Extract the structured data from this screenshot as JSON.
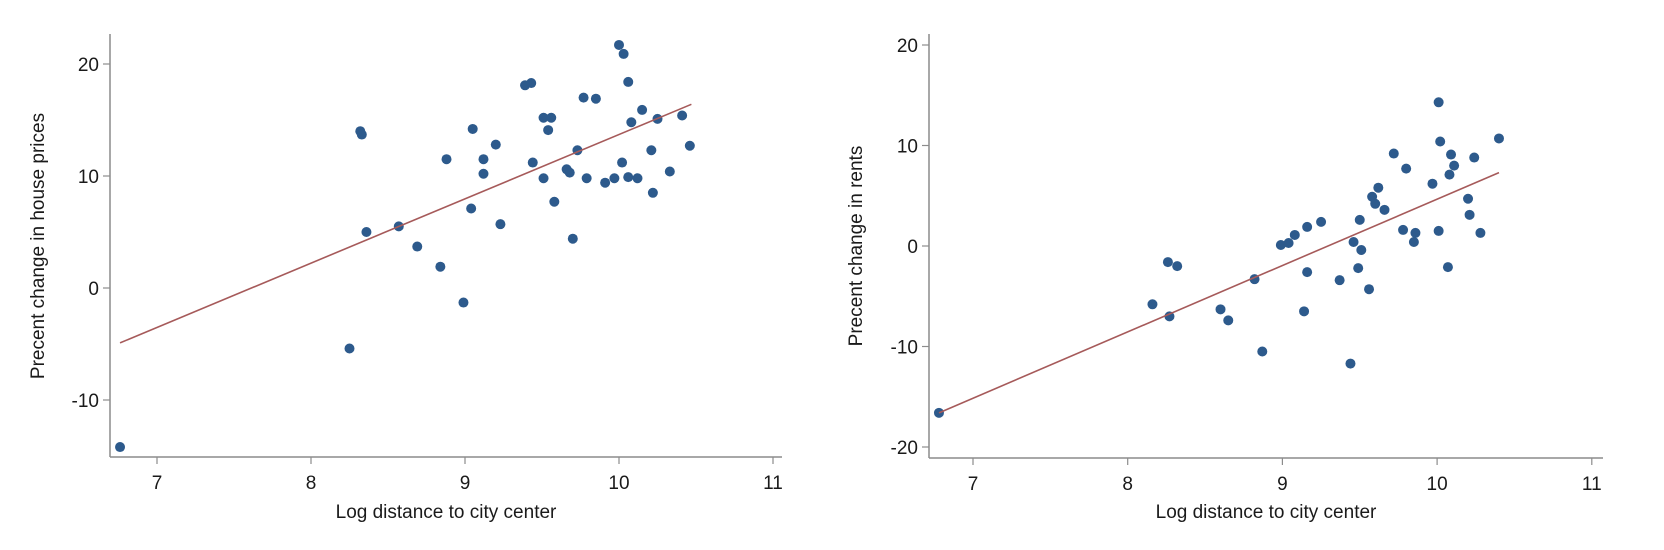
{
  "colors": {
    "points": "#2d5a8c",
    "fit_line": "#a65a5a",
    "axis": "#8c8c8c",
    "background": "#ffffff"
  },
  "chart_data": [
    {
      "type": "scatter",
      "title": "",
      "xlabel": "Log distance to city center",
      "ylabel": "Precent change in house prices",
      "xlim": [
        6.7,
        11.05
      ],
      "ylim": [
        -15.5,
        23
      ],
      "xticks": [
        7,
        8,
        9,
        10,
        11
      ],
      "yticks": [
        -10,
        0,
        10,
        20
      ],
      "grid": false,
      "legend": null,
      "fit_line": {
        "x": [
          6.76,
          10.47
        ],
        "y": [
          -4.9,
          16.4
        ]
      },
      "points": [
        {
          "x": 6.76,
          "y": -14.2
        },
        {
          "x": 8.25,
          "y": -5.4
        },
        {
          "x": 8.32,
          "y": 14.0
        },
        {
          "x": 8.33,
          "y": 13.7
        },
        {
          "x": 8.36,
          "y": 5.0
        },
        {
          "x": 8.57,
          "y": 5.5
        },
        {
          "x": 8.69,
          "y": 3.7
        },
        {
          "x": 8.84,
          "y": 1.9
        },
        {
          "x": 8.88,
          "y": 11.5
        },
        {
          "x": 8.99,
          "y": -1.3
        },
        {
          "x": 9.04,
          "y": 7.1
        },
        {
          "x": 9.05,
          "y": 14.2
        },
        {
          "x": 9.12,
          "y": 11.5
        },
        {
          "x": 9.12,
          "y": 10.2
        },
        {
          "x": 9.2,
          "y": 12.8
        },
        {
          "x": 9.23,
          "y": 5.7
        },
        {
          "x": 9.39,
          "y": 18.1
        },
        {
          "x": 9.43,
          "y": 18.3
        },
        {
          "x": 9.44,
          "y": 11.2
        },
        {
          "x": 9.51,
          "y": 9.8
        },
        {
          "x": 9.51,
          "y": 15.2
        },
        {
          "x": 9.54,
          "y": 14.1
        },
        {
          "x": 9.56,
          "y": 15.2
        },
        {
          "x": 9.58,
          "y": 7.7
        },
        {
          "x": 9.66,
          "y": 10.6
        },
        {
          "x": 9.68,
          "y": 10.3
        },
        {
          "x": 9.7,
          "y": 4.4
        },
        {
          "x": 9.73,
          "y": 12.3
        },
        {
          "x": 9.77,
          "y": 17.0
        },
        {
          "x": 9.79,
          "y": 9.8
        },
        {
          "x": 9.85,
          "y": 16.9
        },
        {
          "x": 9.91,
          "y": 9.4
        },
        {
          "x": 9.97,
          "y": 9.8
        },
        {
          "x": 10.0,
          "y": 21.7
        },
        {
          "x": 10.03,
          "y": 20.9
        },
        {
          "x": 10.02,
          "y": 11.2
        },
        {
          "x": 10.06,
          "y": 18.4
        },
        {
          "x": 10.06,
          "y": 9.9
        },
        {
          "x": 10.08,
          "y": 14.8
        },
        {
          "x": 10.12,
          "y": 9.8
        },
        {
          "x": 10.15,
          "y": 15.9
        },
        {
          "x": 10.21,
          "y": 12.3
        },
        {
          "x": 10.22,
          "y": 8.5
        },
        {
          "x": 10.25,
          "y": 15.1
        },
        {
          "x": 10.33,
          "y": 10.4
        },
        {
          "x": 10.41,
          "y": 15.4
        },
        {
          "x": 10.46,
          "y": 12.7
        }
      ]
    },
    {
      "type": "scatter",
      "title": "",
      "xlabel": "Log distance to city center",
      "ylabel": "Precent change in rents",
      "xlim": [
        6.63,
        11.07
      ],
      "ylim": [
        -21,
        21.1
      ],
      "xticks": [
        7,
        8,
        9,
        10,
        11
      ],
      "yticks": [
        -20,
        -10,
        0,
        10,
        20
      ],
      "grid": false,
      "legend": null,
      "fit_line": {
        "x": [
          6.78,
          10.4
        ],
        "y": [
          -16.6,
          7.3
        ]
      },
      "points": [
        {
          "x": 6.78,
          "y": -16.6
        },
        {
          "x": 8.16,
          "y": -5.8
        },
        {
          "x": 8.26,
          "y": -1.6
        },
        {
          "x": 8.27,
          "y": -7.0
        },
        {
          "x": 8.32,
          "y": -2.0
        },
        {
          "x": 8.6,
          "y": -6.3
        },
        {
          "x": 8.65,
          "y": -7.4
        },
        {
          "x": 8.82,
          "y": -3.3
        },
        {
          "x": 8.87,
          "y": -10.5
        },
        {
          "x": 8.99,
          "y": 0.1
        },
        {
          "x": 9.04,
          "y": 0.3
        },
        {
          "x": 9.08,
          "y": 1.1
        },
        {
          "x": 9.14,
          "y": -6.5
        },
        {
          "x": 9.16,
          "y": 1.9
        },
        {
          "x": 9.16,
          "y": -2.6
        },
        {
          "x": 9.25,
          "y": 2.4
        },
        {
          "x": 9.37,
          "y": -3.4
        },
        {
          "x": 9.44,
          "y": -11.7
        },
        {
          "x": 9.46,
          "y": 0.4
        },
        {
          "x": 9.49,
          "y": -2.2
        },
        {
          "x": 9.5,
          "y": 2.6
        },
        {
          "x": 9.51,
          "y": -0.4
        },
        {
          "x": 9.56,
          "y": -4.3
        },
        {
          "x": 9.58,
          "y": 4.9
        },
        {
          "x": 9.6,
          "y": 4.2
        },
        {
          "x": 9.62,
          "y": 5.8
        },
        {
          "x": 9.66,
          "y": 3.6
        },
        {
          "x": 9.72,
          "y": 9.2
        },
        {
          "x": 9.78,
          "y": 1.6
        },
        {
          "x": 9.8,
          "y": 7.7
        },
        {
          "x": 9.85,
          "y": 0.4
        },
        {
          "x": 9.86,
          "y": 1.3
        },
        {
          "x": 9.97,
          "y": 6.2
        },
        {
          "x": 10.01,
          "y": 14.3
        },
        {
          "x": 10.01,
          "y": 1.5
        },
        {
          "x": 10.02,
          "y": 10.4
        },
        {
          "x": 10.07,
          "y": -2.1
        },
        {
          "x": 10.08,
          "y": 7.1
        },
        {
          "x": 10.09,
          "y": 9.1
        },
        {
          "x": 10.11,
          "y": 8.0
        },
        {
          "x": 10.2,
          "y": 4.7
        },
        {
          "x": 10.21,
          "y": 3.1
        },
        {
          "x": 10.24,
          "y": 8.8
        },
        {
          "x": 10.28,
          "y": 1.3
        },
        {
          "x": 10.4,
          "y": 10.7
        }
      ]
    }
  ],
  "panels": [
    {
      "ylabel": "Precent change in house prices",
      "xlabel": "Log distance to city center",
      "xtick_labels": [
        "7",
        "8",
        "9",
        "10",
        "11"
      ],
      "ytick_labels": [
        "-10",
        "0",
        "10",
        "20"
      ]
    },
    {
      "ylabel": "Precent change in rents",
      "xlabel": "Log distance to city center",
      "xtick_labels": [
        "7",
        "8",
        "9",
        "10",
        "11"
      ],
      "ytick_labels": [
        "-20",
        "-10",
        "0",
        "10",
        "20"
      ]
    }
  ]
}
